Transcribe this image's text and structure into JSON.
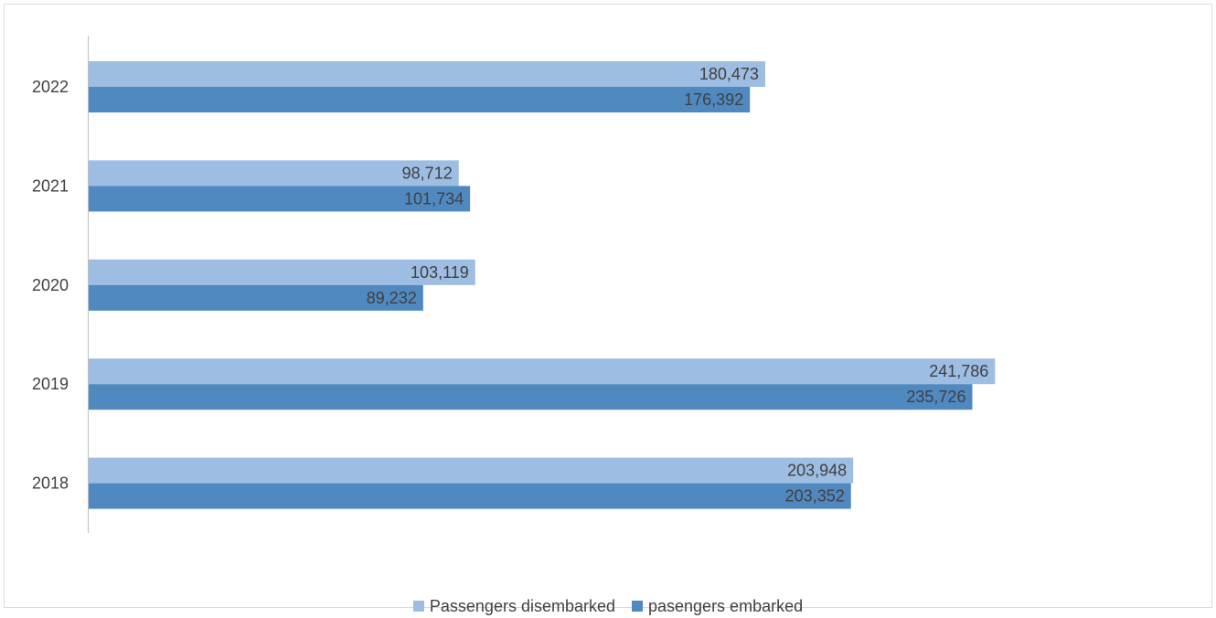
{
  "chart_data": {
    "type": "bar",
    "orientation": "horizontal",
    "title": "",
    "xlabel": "",
    "ylabel": "",
    "categories": [
      "2022",
      "2021",
      "2020",
      "2019",
      "2018"
    ],
    "series": [
      {
        "name": "Passengers disembarked",
        "color": "#9dbde3",
        "values": [
          180473,
          98712,
          103119,
          241786,
          203948
        ]
      },
      {
        "name": "pasengers embarked",
        "color": "#4f89c0",
        "values": [
          176392,
          101734,
          89232,
          235726,
          203352
        ]
      }
    ],
    "data_labels": [
      [
        "180,473",
        "98,712",
        "103,119",
        "241,786",
        "203,948"
      ],
      [
        "176,392",
        "101,734",
        "89,232",
        "235,726",
        "203,352"
      ]
    ],
    "xlim": [
      0,
      260000
    ],
    "grid": false,
    "legend_position": "bottom",
    "axis_color": "#bfbfbf",
    "label_color": "#404040"
  }
}
